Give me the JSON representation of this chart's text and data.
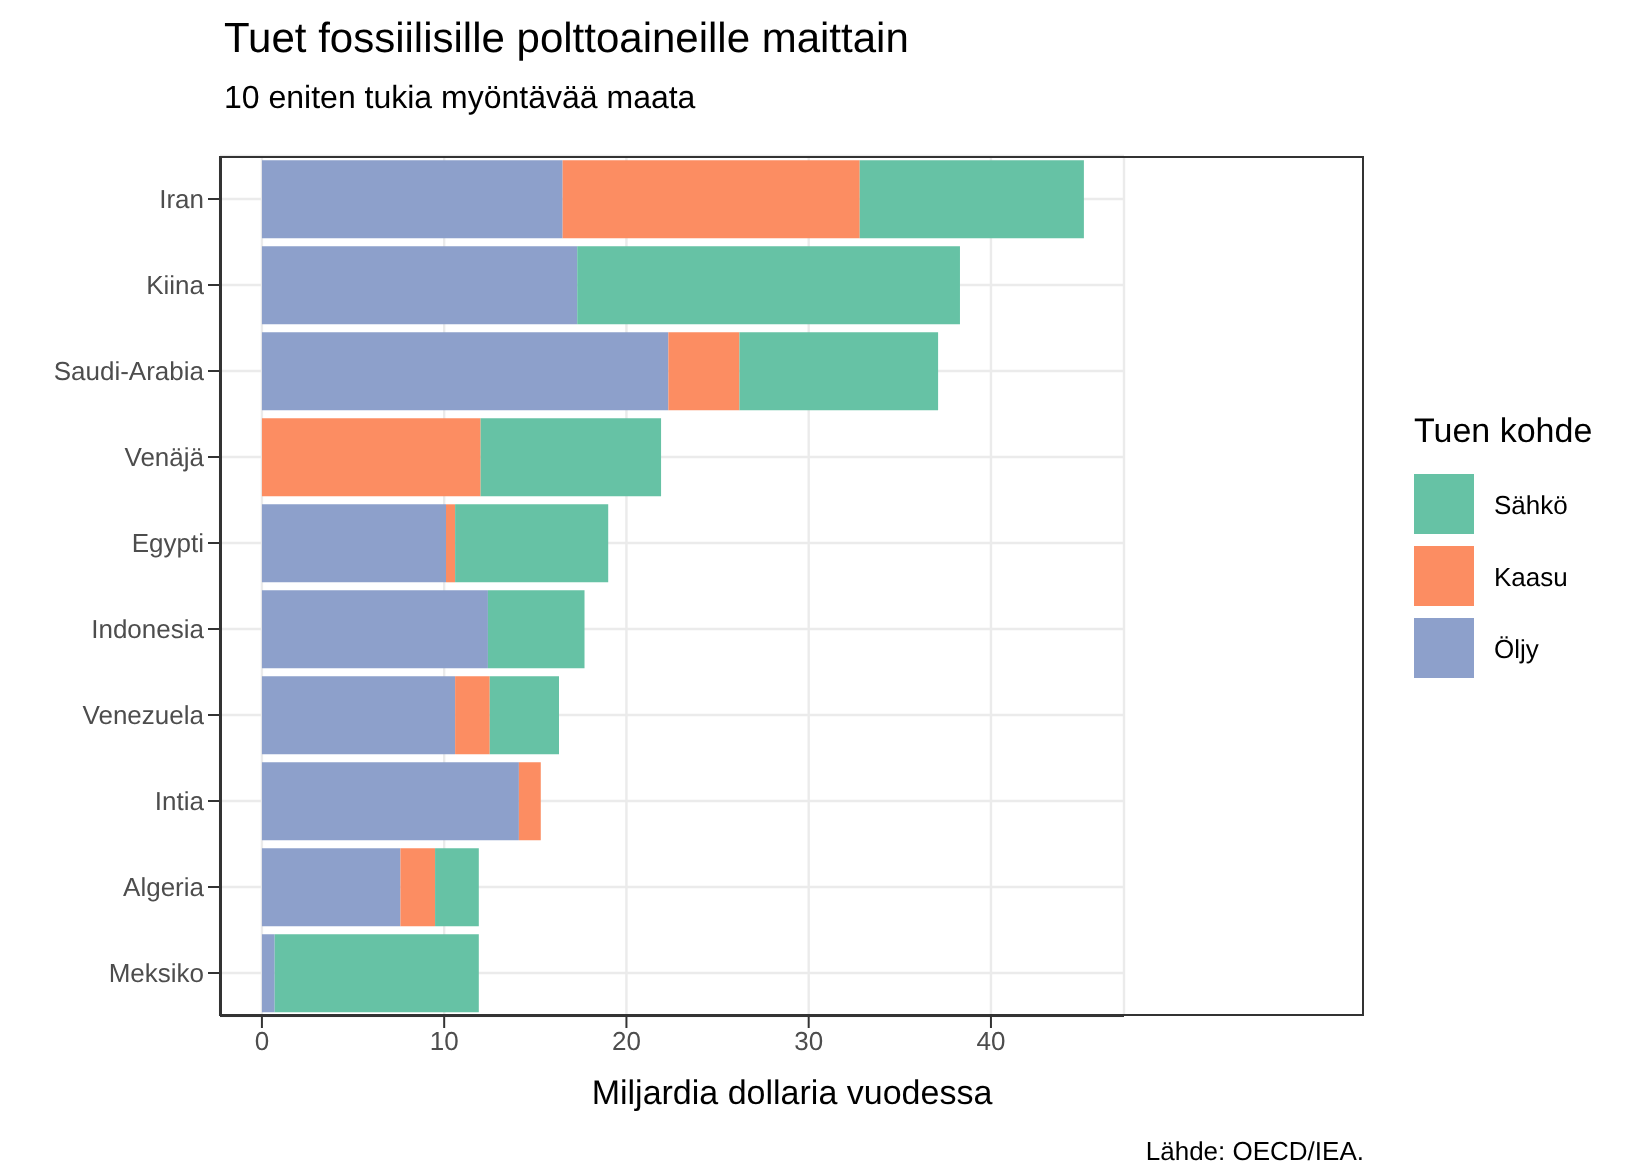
{
  "chart_data": {
    "type": "bar",
    "title": "Tuet fossiilisille polttoaineille maittain",
    "subtitle": "10 eniten tukia myöntävää maata",
    "xlabel": "Miljardia dollaria vuodessa",
    "legend_title": "Tuen kohde",
    "annotations": [
      "Lähde: OECD/IEA."
    ],
    "categories": [
      "Iran",
      "Kiina",
      "Saudi-Arabia",
      "Venäjä",
      "Egypti",
      "Indonesia",
      "Venezuela",
      "Intia",
      "Algeria",
      "Meksiko"
    ],
    "orientation": "horizontal",
    "stacked": true,
    "series": [
      {
        "name": "Öljy",
        "color": "#8da0cb",
        "values": [
          16.5,
          17.3,
          22.3,
          0,
          10.1,
          12.4,
          10.6,
          14.1,
          7.6,
          0.7
        ]
      },
      {
        "name": "Kaasu",
        "color": "#fc8d62",
        "values": [
          16.3,
          0,
          3.9,
          12.0,
          0.5,
          0,
          1.9,
          1.2,
          1.9,
          0
        ]
      },
      {
        "name": "Sähkö",
        "color": "#66c2a5",
        "values": [
          12.3,
          21.0,
          10.9,
          9.9,
          8.4,
          5.3,
          3.8,
          0,
          2.4,
          11.2
        ]
      }
    ],
    "xlim": [
      -2.3,
      47.3
    ],
    "xticks": [
      0,
      10,
      20,
      30,
      40
    ],
    "grid": true,
    "legend": "right"
  }
}
